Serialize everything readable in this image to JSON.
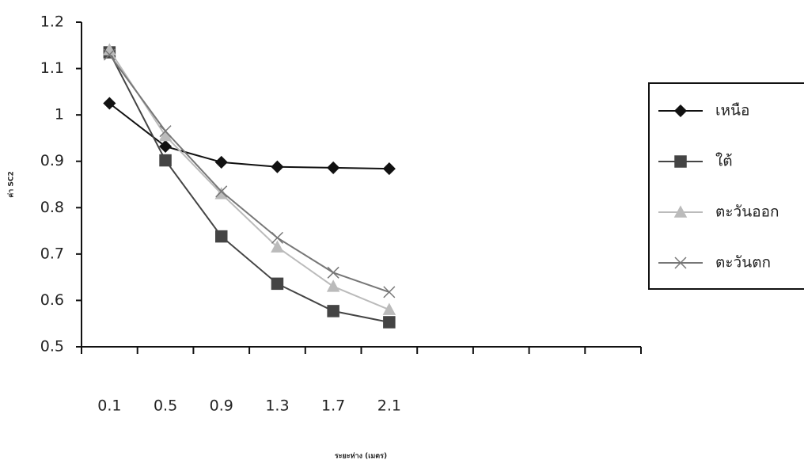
{
  "chart_data": {
    "type": "line",
    "y_label": "ค่า SC2",
    "x_label": "ระยะห่าง (เมตร)",
    "categories": [
      "0.1",
      "0.5",
      "0.9",
      "1.3",
      "1.7",
      "2.1",
      null,
      null,
      null,
      null
    ],
    "ylim": [
      0.5,
      1.2
    ],
    "yticks": [
      0.5,
      0.6,
      0.7,
      0.8,
      0.9,
      1,
      1.1,
      1.2
    ],
    "legend": "right",
    "series": [
      {
        "name": "เหนือ",
        "color": "#111111",
        "marker": "diamond",
        "values": [
          1.025,
          0.932,
          0.898,
          0.888,
          0.886,
          0.884,
          null,
          null,
          null,
          null
        ]
      },
      {
        "name": "ใต้",
        "color": "#444444",
        "marker": "square",
        "values": [
          1.135,
          0.902,
          0.738,
          0.636,
          0.577,
          0.553,
          null,
          null,
          null,
          null
        ]
      },
      {
        "name": "ตะวันออก",
        "color": "#bbbbbb",
        "marker": "triangle",
        "values": [
          1.14,
          0.955,
          0.83,
          0.715,
          0.63,
          0.58,
          null,
          null,
          null,
          null
        ]
      },
      {
        "name": "ตะวันตก",
        "color": "#777777",
        "marker": "x",
        "values": [
          1.13,
          0.965,
          0.835,
          0.735,
          0.66,
          0.618,
          null,
          null,
          null,
          null
        ]
      }
    ]
  }
}
